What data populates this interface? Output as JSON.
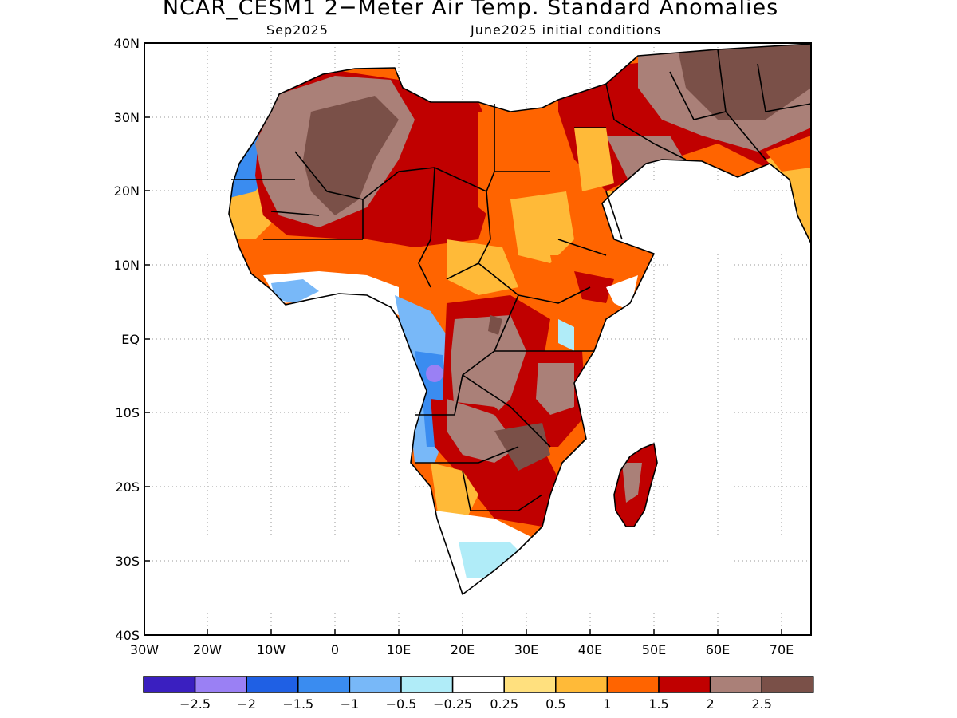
{
  "header": {
    "title": "NCAR_CESM1 2−Meter Air Temp. Standard Anomalies",
    "valid_month": "Sep2025",
    "initial_conditions": "June2025 initial conditions"
  },
  "axes": {
    "lat_labels": [
      "40N",
      "30N",
      "20N",
      "10N",
      "EQ",
      "10S",
      "20S",
      "30S",
      "40S"
    ],
    "lon_labels": [
      "30W",
      "20W",
      "10W",
      "0",
      "10E",
      "20E",
      "30E",
      "40E",
      "50E",
      "60E",
      "70E"
    ]
  },
  "colorbar": {
    "colors": [
      "#3a1fc0",
      "#9a80f4",
      "#1f60e4",
      "#3a8cf0",
      "#78b8f8",
      "#b0ecf8",
      "#ffffff",
      "#ffe07e",
      "#ffba38",
      "#ff6400",
      "#c00000",
      "#aa8078",
      "#7a5048"
    ],
    "labels": [
      "−2.5",
      "−2",
      "−1.5",
      "−1",
      "−0.5",
      "−0.25",
      "0.25",
      "0.5",
      "1",
      "1.5",
      "2",
      "2.5"
    ]
  }
}
